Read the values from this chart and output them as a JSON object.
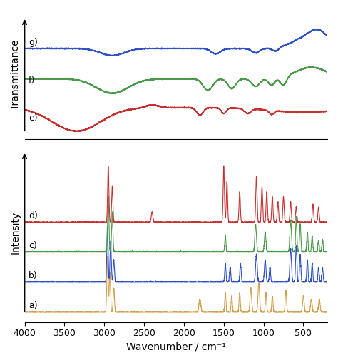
{
  "xmin": 4000,
  "xmax": 200,
  "labels": [
    "a)",
    "b)",
    "c)",
    "d)",
    "e)",
    "f)",
    "g)"
  ],
  "colors": [
    "#d4a050",
    "#3050c8",
    "#4a9a4a",
    "#c83030",
    "#c83030",
    "#4a9a4a",
    "#3050c8"
  ],
  "xlabel": "Wavenumber / cm⁻¹",
  "ylabel_bottom": "Intensity",
  "ylabel_top": "Transmittance",
  "background": "#ffffff"
}
